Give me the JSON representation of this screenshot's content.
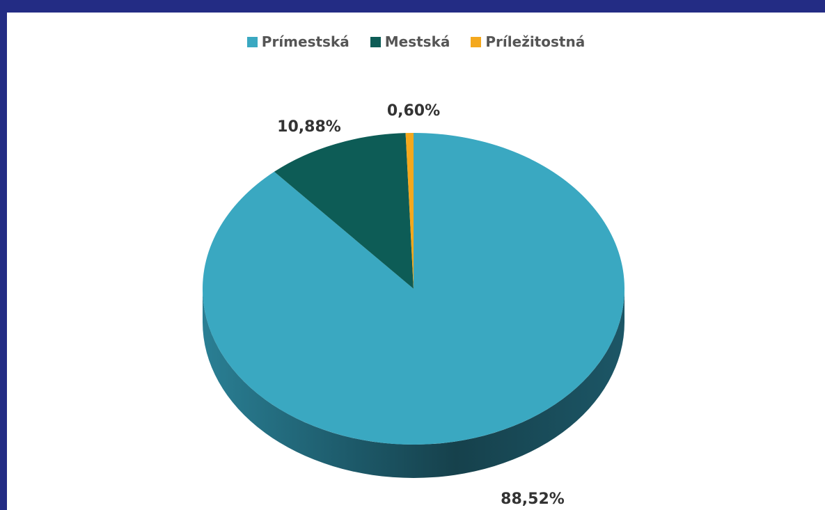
{
  "chart_data": {
    "type": "pie",
    "title": "",
    "legend_position": "top",
    "three_d": true,
    "categories": [
      "Prímestská",
      "Mestská",
      "Príležitostná"
    ],
    "values": [
      88.52,
      10.88,
      0.6
    ],
    "labels": [
      "88,52%",
      "10,88%",
      "0,60%"
    ],
    "colors": [
      "#3aa8c1",
      "#0d5c56",
      "#f4a81d"
    ],
    "side_colors": [
      "#2a7f94",
      "#0a423e",
      "#b87c12"
    ]
  },
  "legend": {
    "items": [
      {
        "label": "Prímestská",
        "color": "#3aa8c1"
      },
      {
        "label": "Mestská",
        "color": "#0d5c56"
      },
      {
        "label": "Príležitostná",
        "color": "#f4a81d"
      }
    ]
  },
  "colors": {
    "background_frame": "#232c84",
    "panel": "#ffffff"
  }
}
